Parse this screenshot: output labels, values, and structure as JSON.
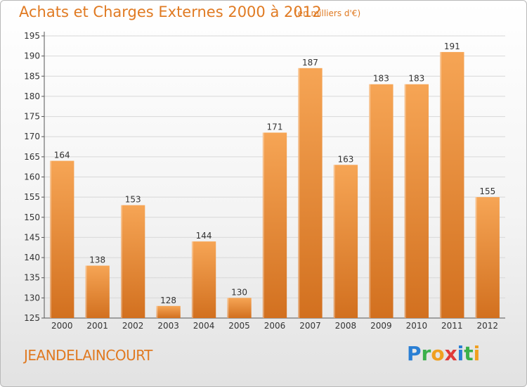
{
  "header": {
    "title": "Achats et Charges Externes 2000 à 2012",
    "unit": "(en milliers d'€)"
  },
  "footer": {
    "commune": "JEANDELAINCOURT",
    "logo": {
      "letters": [
        "P",
        "r",
        "o",
        "x",
        "i",
        "t",
        "i"
      ],
      "colors": [
        "#2a7fd4",
        "#3bb04a",
        "#f0a020",
        "#e03a3a",
        "#2a7fd4",
        "#3bb04a",
        "#f0a020"
      ]
    }
  },
  "colors": {
    "bar_light": "#f6a555",
    "bar_dark": "#d2701f",
    "title": "#e07a22",
    "grid": "#d8d8d8"
  },
  "chart_data": {
    "type": "bar",
    "title": "Achats et Charges Externes 2000 à 2012",
    "xlabel": "",
    "ylabel": "",
    "categories": [
      "2000",
      "2001",
      "2002",
      "2003",
      "2004",
      "2005",
      "2006",
      "2007",
      "2008",
      "2009",
      "2010",
      "2011",
      "2012"
    ],
    "values": [
      164,
      138,
      153,
      128,
      144,
      130,
      171,
      187,
      163,
      183,
      183,
      191,
      155
    ],
    "ylim": [
      125,
      195
    ],
    "yticks": [
      125,
      130,
      135,
      140,
      145,
      150,
      155,
      160,
      165,
      170,
      175,
      180,
      185,
      190,
      195
    ],
    "grid": true,
    "data_labels": true
  }
}
